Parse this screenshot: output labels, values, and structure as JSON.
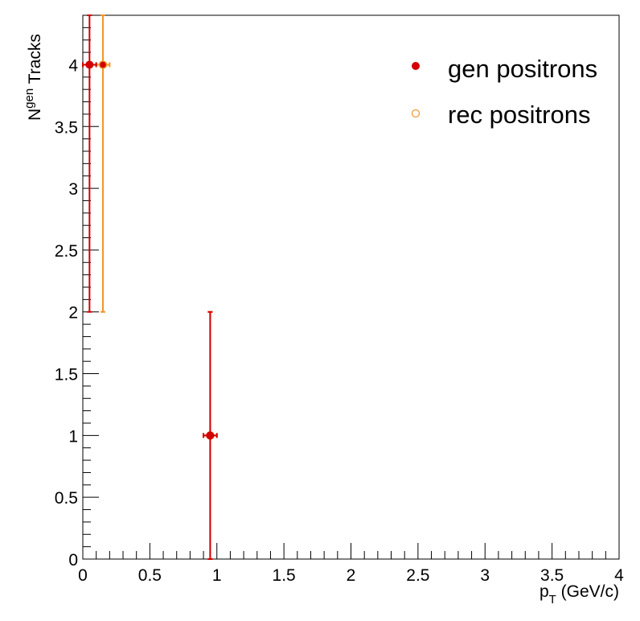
{
  "chart_data": {
    "type": "scatter",
    "xlabel": {
      "main": "p",
      "sub": "T",
      "rest": " (GeV/c)"
    },
    "ylabel": {
      "main": "N",
      "sup": "gen",
      "rest": " Tracks"
    },
    "xlim": [
      0,
      4
    ],
    "ylim": [
      0,
      4.4
    ],
    "x_ticks": [
      "0",
      "0.5",
      "1",
      "1.5",
      "2",
      "2.5",
      "3",
      "3.5",
      "4"
    ],
    "y_ticks": [
      "0",
      "0.5",
      "1",
      "1.5",
      "2",
      "2.5",
      "3",
      "3.5",
      "4"
    ],
    "grid": false,
    "legend_position": "top-right",
    "series": [
      {
        "name": "gen positrons",
        "marker": "filled-circle",
        "color": "#d40000",
        "points": [
          {
            "x": 0.05,
            "y": 4,
            "yerr_low": 2,
            "yerr_high": 2,
            "xerr": 0.05
          },
          {
            "x": 0.95,
            "y": 1,
            "yerr_low": 1,
            "yerr_high": 1,
            "xerr": 0.05
          }
        ]
      },
      {
        "name": "rec positrons",
        "marker": "open-circle",
        "color": "#f0952a",
        "points": [
          {
            "x": 0.15,
            "y": 4,
            "yerr_low": 2,
            "yerr_high": 2,
            "xerr": 0.05
          },
          {
            "x": 0.95,
            "y": 1,
            "yerr_low": 1,
            "yerr_high": 1,
            "xerr": 0.05
          }
        ]
      }
    ]
  }
}
